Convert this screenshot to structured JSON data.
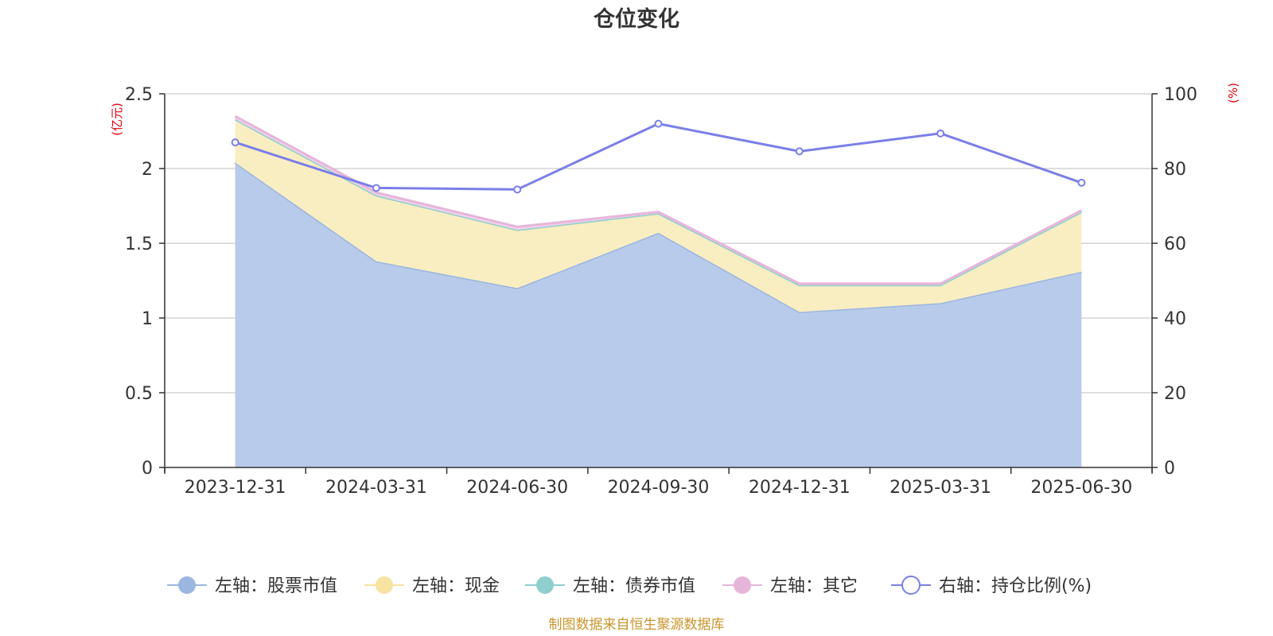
{
  "chart_data": {
    "type": "area",
    "title": "仓位变化",
    "categories": [
      "2023-12-31",
      "2024-03-31",
      "2024-06-30",
      "2024-09-30",
      "2024-12-31",
      "2025-03-31",
      "2025-06-30"
    ],
    "left_axis": {
      "unit": "(亿元)",
      "ylim": [
        0,
        2.5
      ],
      "ticks": [
        "0",
        "0.5",
        "1",
        "1.5",
        "2",
        "2.5"
      ]
    },
    "right_axis": {
      "unit": "(%)",
      "ylim": [
        0,
        100
      ],
      "ticks": [
        "0",
        "20",
        "40",
        "60",
        "80",
        "100"
      ]
    },
    "grid": true,
    "legend_position": "bottom",
    "series": [
      {
        "name": "左轴：股票市值",
        "axis": "left",
        "kind": "area",
        "color": "#9bb6e0",
        "fill": "#b8cbea",
        "values": [
          2.04,
          1.38,
          1.2,
          1.57,
          1.04,
          1.1,
          1.31
        ]
      },
      {
        "name": "左轴：现金",
        "axis": "left",
        "kind": "area",
        "color": "#f6e4a0",
        "fill": "#f9eec1",
        "values": [
          0.29,
          0.44,
          0.39,
          0.13,
          0.18,
          0.12,
          0.4
        ]
      },
      {
        "name": "左轴：债券市值",
        "axis": "left",
        "kind": "area",
        "color": "#8fcfcf",
        "fill": "#bfe3e3",
        "values": [
          0,
          0,
          0,
          0,
          0,
          0,
          0
        ]
      },
      {
        "name": "左轴：其它",
        "axis": "left",
        "kind": "area",
        "color": "#e6b6da",
        "fill": "#f0d3e9",
        "values": [
          0.02,
          0.02,
          0.02,
          0.01,
          0.01,
          0.01,
          0.01
        ]
      },
      {
        "name": "右轴：持仓比例(%)",
        "axis": "right",
        "kind": "line",
        "color": "#7b7fe8",
        "values": [
          87.0,
          74.8,
          74.4,
          92.0,
          84.6,
          89.4,
          76.2
        ]
      }
    ],
    "source": "制图数据来自恒生聚源数据库"
  }
}
